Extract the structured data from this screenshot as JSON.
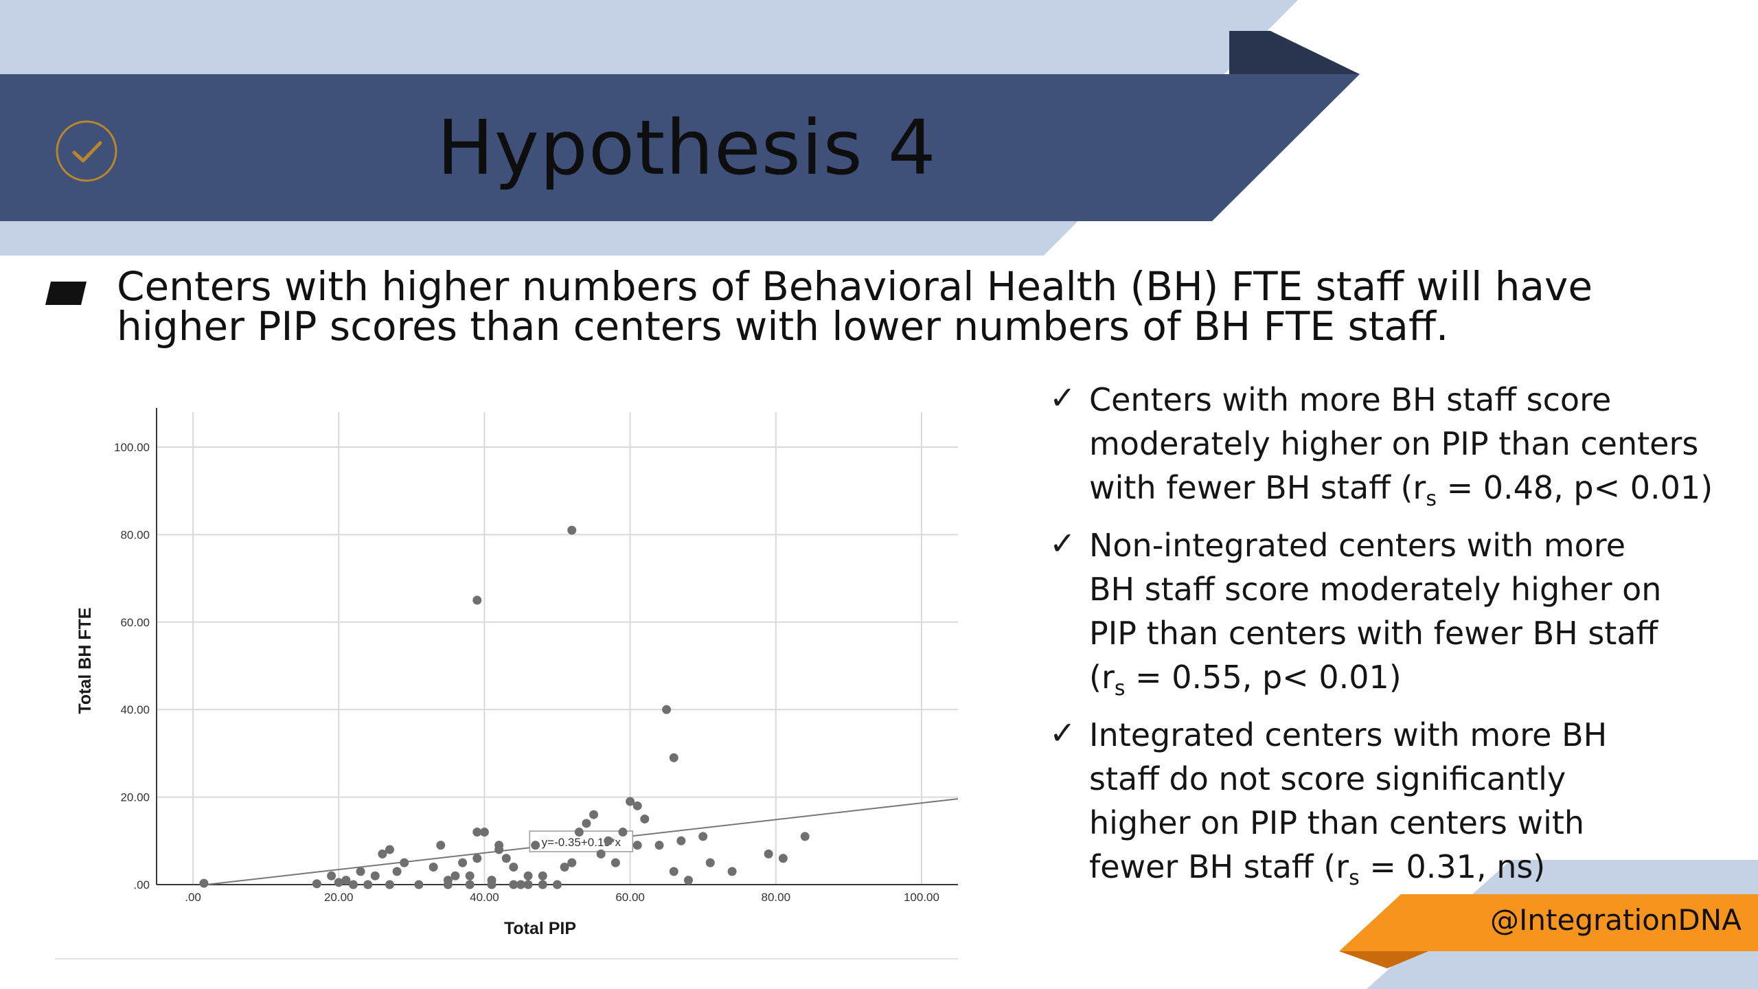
{
  "slide": {
    "title": "Hypothesis 4",
    "hypothesis_lines": [
      "Centers with higher numbers of Behavioral Health (BH) FTE staff will have",
      "higher PIP scores than centers with lower numbers of BH FTE staff."
    ],
    "findings": [
      {
        "lines": [
          {
            "text": "Centers with more BH staff score"
          },
          {
            "text": "moderately higher on PIP than centers"
          },
          {
            "pre": "with fewer BH staff (r",
            "sub": "s",
            "post": " = 0.48, p< 0.01)"
          }
        ]
      },
      {
        "lines": [
          {
            "text": "Non-integrated centers with more"
          },
          {
            "text": "BH staff score moderately higher on"
          },
          {
            "text": "PIP than centers with fewer BH staff"
          },
          {
            "pre": "(r",
            "sub": "s",
            "post": " = 0.55, p< 0.01)"
          }
        ]
      },
      {
        "lines": [
          {
            "text": "Integrated centers with more BH"
          },
          {
            "text": "staff do not score significantly"
          },
          {
            "text": "higher on PIP than centers with"
          },
          {
            "pre": "fewer BH staff (r",
            "sub": "s",
            "post": " = 0.31, ns)"
          }
        ]
      }
    ],
    "handle": "@IntegrationDNA",
    "icons": {
      "title_badge": "check-circle-icon",
      "bullet": "parallelogram-bullet-icon",
      "finding_bullet": "checkmark-icon",
      "finding_bullet_glyph": "✓"
    },
    "colors": {
      "banner_dark": "#3f5079",
      "banner_light": "#c5d2e6",
      "accent_orange": "#f7941d",
      "badge_gold": "#b8862b"
    }
  },
  "chart_data": {
    "type": "scatter",
    "xlabel": "Total PIP",
    "ylabel": "Total BH FTE",
    "xlim": [
      -5,
      105
    ],
    "ylim": [
      0,
      108
    ],
    "x_ticks": [
      0,
      20,
      40,
      60,
      80,
      100
    ],
    "x_tick_labels": [
      ".00",
      "20.00",
      "40.00",
      "60.00",
      "80.00",
      "100.00"
    ],
    "y_ticks": [
      0,
      20,
      40,
      60,
      80,
      100
    ],
    "y_tick_labels": [
      ".00",
      "20.00",
      "40.00",
      "60.00",
      "80.00",
      "100.00"
    ],
    "grid": true,
    "fit_line": {
      "intercept": -0.35,
      "slope": 0.19,
      "label": "y=-0.35+0.19*x",
      "label_at_x": 53
    },
    "points": [
      [
        1.5,
        0.3
      ],
      [
        17,
        0.2
      ],
      [
        19,
        2
      ],
      [
        20,
        0.5
      ],
      [
        21,
        1
      ],
      [
        22,
        0
      ],
      [
        23,
        3
      ],
      [
        24,
        0
      ],
      [
        25,
        2
      ],
      [
        26,
        7
      ],
      [
        27,
        8
      ],
      [
        27,
        0
      ],
      [
        28,
        3
      ],
      [
        29,
        5
      ],
      [
        31,
        0
      ],
      [
        33,
        4
      ],
      [
        34,
        9
      ],
      [
        35,
        1
      ],
      [
        35,
        0
      ],
      [
        36,
        2
      ],
      [
        37,
        5
      ],
      [
        38,
        2
      ],
      [
        38,
        0
      ],
      [
        39,
        6
      ],
      [
        39,
        12
      ],
      [
        40,
        12
      ],
      [
        41,
        0
      ],
      [
        41,
        1
      ],
      [
        42,
        9
      ],
      [
        42,
        8
      ],
      [
        43,
        6
      ],
      [
        44,
        4
      ],
      [
        44,
        0
      ],
      [
        45,
        0
      ],
      [
        46,
        0
      ],
      [
        46,
        2
      ],
      [
        47,
        9
      ],
      [
        48,
        0
      ],
      [
        48,
        2
      ],
      [
        50,
        0
      ],
      [
        51,
        4
      ],
      [
        52,
        5
      ],
      [
        53,
        12
      ],
      [
        54,
        14
      ],
      [
        55,
        16
      ],
      [
        56,
        7
      ],
      [
        57,
        10
      ],
      [
        58,
        5
      ],
      [
        59,
        12
      ],
      [
        60,
        19
      ],
      [
        61,
        18
      ],
      [
        61,
        9
      ],
      [
        62,
        15
      ],
      [
        64,
        9
      ],
      [
        66,
        3
      ],
      [
        67,
        10
      ],
      [
        68,
        1
      ],
      [
        70,
        11
      ],
      [
        71,
        5
      ],
      [
        74,
        3
      ],
      [
        79,
        7
      ],
      [
        81,
        6
      ],
      [
        84,
        11
      ],
      [
        52,
        81
      ],
      [
        39,
        65
      ],
      [
        65,
        40
      ],
      [
        66,
        29
      ]
    ]
  }
}
